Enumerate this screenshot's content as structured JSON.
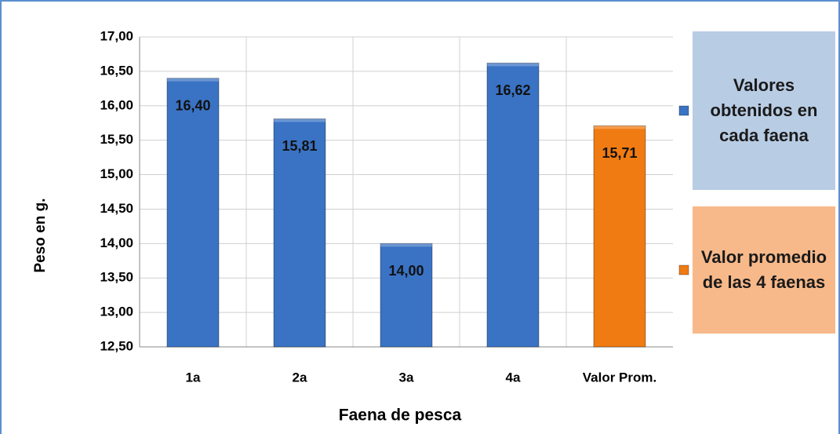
{
  "chart_data": {
    "type": "bar",
    "y_label": "Peso en g.",
    "x_label": "Faena de pesca",
    "categories": [
      "1a",
      "2a",
      "3a",
      "4a",
      "Valor Prom."
    ],
    "series": [
      {
        "name": "Valores obtenidos en cada faena",
        "color": "#3a73c4",
        "values": [
          16.4,
          15.81,
          14.0,
          16.62,
          null
        ],
        "value_labels": [
          "16,40",
          "15,81",
          "14,00",
          "16,62",
          null
        ]
      },
      {
        "name": "Valor promedio de las 4 faenas",
        "color": "#f07b12",
        "values": [
          null,
          null,
          null,
          null,
          15.71
        ],
        "value_labels": [
          null,
          null,
          null,
          null,
          "15,71"
        ]
      }
    ],
    "ylim": [
      12.5,
      17.0
    ],
    "yticks": [
      {
        "value": 12.5,
        "label": "12,50"
      },
      {
        "value": 13.0,
        "label": "13,00"
      },
      {
        "value": 13.5,
        "label": "13,50"
      },
      {
        "value": 14.0,
        "label": "14,00"
      },
      {
        "value": 14.5,
        "label": "14,50"
      },
      {
        "value": 15.0,
        "label": "15,00"
      },
      {
        "value": 15.5,
        "label": "15,50"
      },
      {
        "value": 16.0,
        "label": "16,00"
      },
      {
        "value": 16.5,
        "label": "16,50"
      },
      {
        "value": 17.0,
        "label": "17,00"
      }
    ],
    "grid": true,
    "legend_position": "right"
  }
}
